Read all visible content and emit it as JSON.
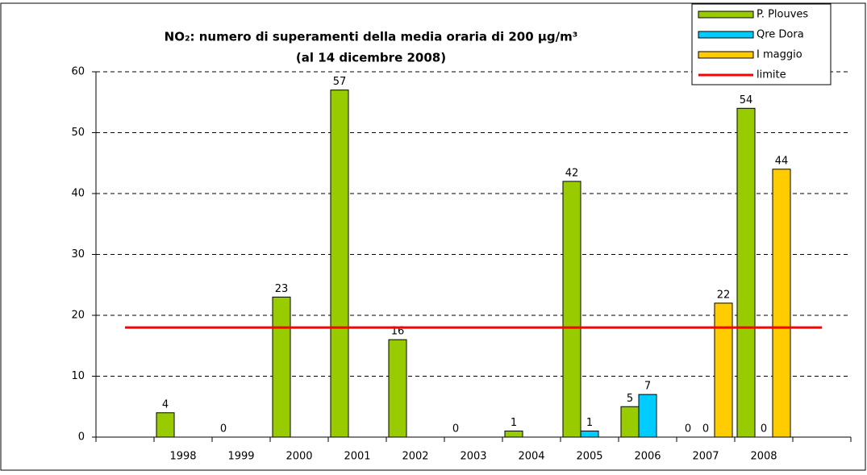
{
  "chart_data": {
    "type": "bar",
    "title": "NO₂: numero di superamenti della media oraria di 200 µg/m³",
    "subtitle": "(al 14 dicembre 2008)",
    "categories": [
      null,
      "1998",
      "1999",
      "2000",
      "2001",
      "2002",
      "2003",
      "2004",
      "2005",
      "2006",
      "2007",
      "2008",
      null
    ],
    "series": [
      {
        "name": "P. Plouves",
        "color": "#99cc00",
        "values": [
          null,
          4,
          0,
          23,
          57,
          16,
          0,
          1,
          42,
          5,
          0,
          54,
          null
        ]
      },
      {
        "name": "Qre Dora",
        "color": "#00ccff",
        "values": [
          null,
          null,
          null,
          null,
          null,
          null,
          null,
          null,
          1,
          7,
          0,
          0,
          null
        ]
      },
      {
        "name": "I maggio",
        "color": "#ffcc00",
        "values": [
          null,
          null,
          null,
          null,
          null,
          null,
          null,
          null,
          null,
          null,
          22,
          44,
          null
        ]
      },
      {
        "name": "limite",
        "color": "#ff0000",
        "type": "line",
        "values": [
          18,
          18,
          18,
          18,
          18,
          18,
          18,
          18,
          18,
          18,
          18,
          18,
          18
        ]
      }
    ],
    "ylim": [
      0,
      60
    ],
    "yticks": [
      0,
      10,
      20,
      30,
      40,
      50,
      60
    ],
    "grid": true,
    "legend": "top-right"
  }
}
